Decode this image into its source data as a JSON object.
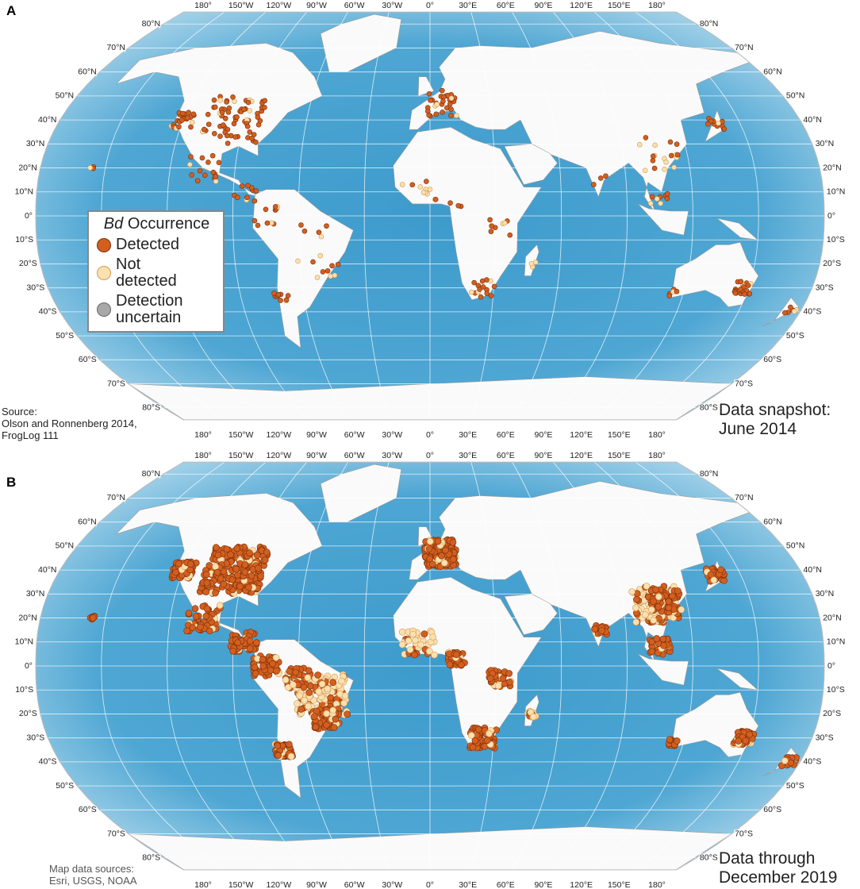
{
  "panels": [
    {
      "label": "A",
      "source": [
        "Source:",
        "Olson and Ronnenberg 2014,",
        "FrogLog 111"
      ],
      "caption": [
        "Data snapshot:",
        "June 2014"
      ]
    },
    {
      "label": "B",
      "source": [
        "Map data sources:",
        "Esri, USGS, NOAA"
      ],
      "caption": [
        "Data through",
        "December 2019"
      ]
    }
  ],
  "graticule": {
    "longitudes": [
      "180°",
      "150°W",
      "120°W",
      "90°W",
      "60°W",
      "30°W",
      "0°",
      "30°E",
      "60°E",
      "90°E",
      "120°E",
      "150°E",
      "180°"
    ],
    "latitudes": [
      "80°N",
      "70°N",
      "60°N",
      "50°N",
      "40°N",
      "30°N",
      "20°N",
      "10°N",
      "0°",
      "10°S",
      "20°S",
      "30°S",
      "40°S",
      "50°S",
      "60°S",
      "70°S",
      "80°S"
    ]
  },
  "legend": {
    "title_italic": "Bd",
    "title": "Occurrence",
    "items": [
      "Detected",
      "Not detected",
      "Detection uncertain"
    ]
  }
}
